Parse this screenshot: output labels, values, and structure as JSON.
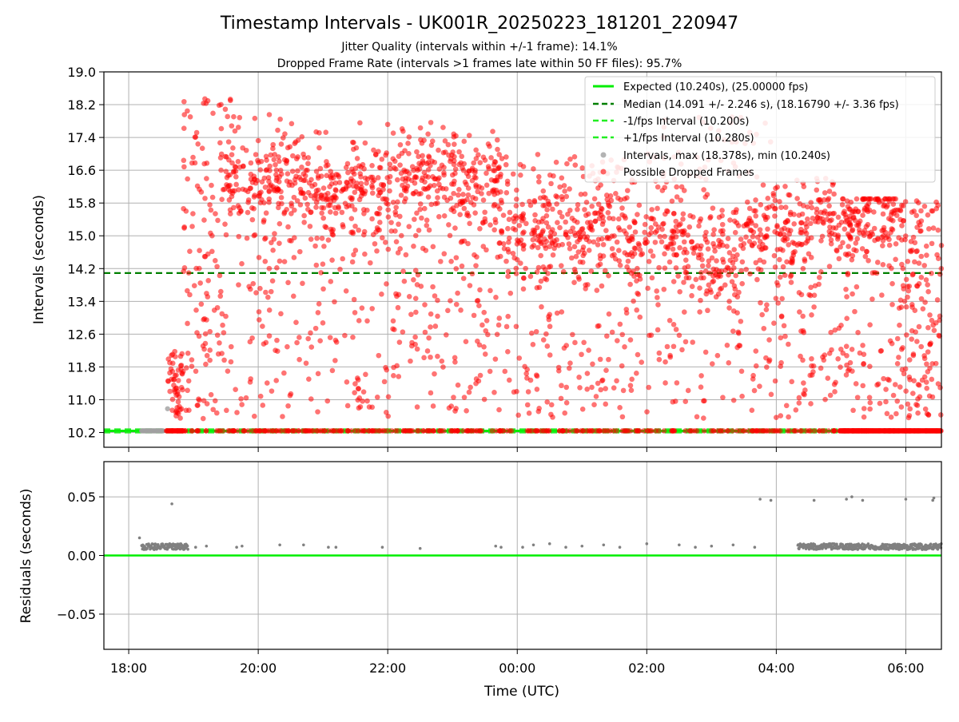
{
  "title": "Timestamp Intervals - UK001R_20250223_181201_220947",
  "subtitle_lines": [
    "Jitter Quality (intervals within +/-1 frame): 14.1%",
    "Dropped Frame Rate (intervals >1 frames late within 50 FF files): 95.7%"
  ],
  "colors": {
    "expected": "#00ee00",
    "median": "#007f00",
    "fps_bounds": "#22ee22",
    "intervals": "#a0a0a0",
    "dropped": "#ff0000",
    "residuals": "#808080",
    "grid": "#b0b0b0"
  },
  "chart_data": [
    {
      "type": "scatter",
      "panel": "intervals",
      "ylabel": "Intervals (seconds)",
      "xlabel": "",
      "xlim": [
        "17:37",
        "06:33"
      ],
      "ylim": [
        9.84,
        19.0
      ],
      "y_ticks": [
        "10.2",
        "11.0",
        "11.8",
        "12.6",
        "13.4",
        "14.2",
        "15.0",
        "15.8",
        "16.6",
        "17.4",
        "18.2",
        "19.0"
      ],
      "x_ticks": [
        "18:00",
        "20:00",
        "22:00",
        "00:00",
        "02:00",
        "04:00",
        "06:00"
      ],
      "grid": "horizontal and vertical",
      "legend_position": "top-right",
      "reference_lines": [
        {
          "name": "Expected (10.240s), (25.00000 fps)",
          "y": 10.24,
          "style": "solid"
        },
        {
          "name": "Median (14.091 +/- 2.246 s), (18.16790 +/- 3.36 fps)",
          "y": 14.091,
          "style": "dashed"
        },
        {
          "name": "-1/fps Interval (10.200s)",
          "y": 10.2,
          "style": "dashed"
        },
        {
          "name": "+1/fps Interval (10.280s)",
          "y": 10.28,
          "style": "dashed"
        }
      ],
      "series": [
        {
          "name": "Intervals, max (18.378s), min (10.240s)",
          "x_range": [
            "18:12",
            "18:32"
          ],
          "y": 10.24,
          "outlier": {
            "x": "18:36",
            "y": 10.78
          }
        },
        {
          "name": "Possible Dropped Frames",
          "density_by_hour": [
            {
              "start": "18:35",
              "end": "18:50",
              "y_min": 10.24,
              "y_max": 12.2,
              "count": 60
            },
            {
              "start": "18:50",
              "end": "20:00",
              "y_min": 10.24,
              "y_max": 18.38,
              "count": 260
            },
            {
              "start": "20:00",
              "end": "22:00",
              "y_min": 10.24,
              "y_max": 18.0,
              "count": 520
            },
            {
              "start": "22:00",
              "end": "23:50",
              "y_min": 10.24,
              "y_max": 17.8,
              "count": 480
            },
            {
              "start": "23:50",
              "end": "02:00",
              "y_min": 10.24,
              "y_max": 17.0,
              "count": 520
            },
            {
              "start": "02:00",
              "end": "04:00",
              "y_min": 10.24,
              "y_max": 17.9,
              "count": 460
            },
            {
              "start": "04:00",
              "end": "05:00",
              "y_min": 10.24,
              "y_max": 16.4,
              "count": 240
            },
            {
              "start": "05:00",
              "end": "06:33",
              "y_min": 10.24,
              "y_max": 15.9,
              "count": 420
            }
          ],
          "clusters": [
            {
              "center": "20:10",
              "y": 16.3
            },
            {
              "center": "21:30",
              "y": 16.1
            },
            {
              "center": "22:50",
              "y": 16.5
            },
            {
              "center": "23:10",
              "y": 16.2
            },
            {
              "center": "00:20",
              "y": 15.1
            },
            {
              "center": "01:10",
              "y": 15.2
            },
            {
              "center": "02:10",
              "y": 15.0
            },
            {
              "center": "03:00",
              "y": 14.4
            },
            {
              "center": "04:00",
              "y": 15.2
            },
            {
              "center": "05:10",
              "y": 15.4
            }
          ]
        }
      ]
    },
    {
      "type": "scatter",
      "panel": "residuals",
      "ylabel": "Residuals (seconds)",
      "xlabel": "Time (UTC)",
      "ylim": [
        -0.08,
        0.08
      ],
      "y_ticks": [
        "0.05",
        "0.00",
        "−0.05"
      ],
      "x_ticks": [
        "18:00",
        "20:00",
        "22:00",
        "00:00",
        "02:00",
        "04:00",
        "06:00"
      ],
      "reference_line": {
        "y": 0.0
      },
      "series": [
        {
          "name": "Residuals",
          "dense_ranges": [
            {
              "start": "18:12",
              "end": "18:55",
              "y_min": 0.005,
              "y_max": 0.01
            },
            {
              "start": "04:20",
              "end": "06:33",
              "y_min": 0.005,
              "y_max": 0.01
            }
          ],
          "sparse_points": [
            {
              "x": "18:10",
              "y": 0.015
            },
            {
              "x": "18:40",
              "y": 0.044
            },
            {
              "x": "19:02",
              "y": 0.007
            },
            {
              "x": "19:12",
              "y": 0.008
            },
            {
              "x": "19:40",
              "y": 0.007
            },
            {
              "x": "19:45",
              "y": 0.008
            },
            {
              "x": "20:20",
              "y": 0.009
            },
            {
              "x": "20:42",
              "y": 0.009
            },
            {
              "x": "21:05",
              "y": 0.007
            },
            {
              "x": "21:12",
              "y": 0.007
            },
            {
              "x": "21:55",
              "y": 0.007
            },
            {
              "x": "22:30",
              "y": 0.006
            },
            {
              "x": "23:40",
              "y": 0.008
            },
            {
              "x": "23:45",
              "y": 0.007
            },
            {
              "x": "00:05",
              "y": 0.007
            },
            {
              "x": "00:15",
              "y": 0.009
            },
            {
              "x": "00:30",
              "y": 0.01
            },
            {
              "x": "00:45",
              "y": 0.007
            },
            {
              "x": "01:00",
              "y": 0.008
            },
            {
              "x": "01:20",
              "y": 0.009
            },
            {
              "x": "01:35",
              "y": 0.007
            },
            {
              "x": "02:00",
              "y": 0.01
            },
            {
              "x": "02:30",
              "y": 0.009
            },
            {
              "x": "02:45",
              "y": 0.007
            },
            {
              "x": "03:00",
              "y": 0.008
            },
            {
              "x": "03:20",
              "y": 0.009
            },
            {
              "x": "03:40",
              "y": 0.007
            },
            {
              "x": "03:45",
              "y": 0.048
            },
            {
              "x": "03:55",
              "y": 0.047
            },
            {
              "x": "04:35",
              "y": 0.047
            },
            {
              "x": "05:05",
              "y": 0.048
            },
            {
              "x": "05:10",
              "y": 0.05
            },
            {
              "x": "05:20",
              "y": 0.047
            },
            {
              "x": "06:00",
              "y": 0.048
            },
            {
              "x": "06:25",
              "y": 0.047
            },
            {
              "x": "06:26",
              "y": 0.049
            }
          ]
        }
      ]
    }
  ]
}
